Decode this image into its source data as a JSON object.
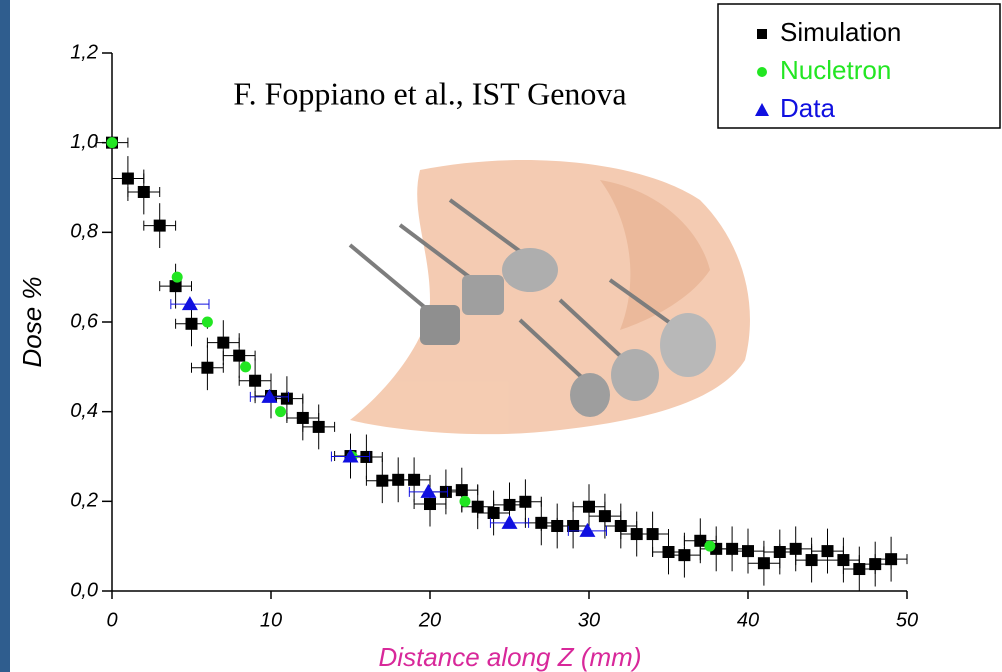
{
  "chart_data": {
    "type": "scatter",
    "annotation": "F. Foppiano et al., IST Genova",
    "xlabel": "Distance along Z (mm)",
    "ylabel": "Dose %",
    "xlim": [
      0,
      50
    ],
    "ylim": [
      0,
      1.2
    ],
    "xticks": [
      0,
      10,
      20,
      30,
      40,
      50
    ],
    "yticks": [
      {
        "value": 0,
        "label": "0,0"
      },
      {
        "value": 0.2,
        "label": "0,2"
      },
      {
        "value": 0.4,
        "label": "0,4"
      },
      {
        "value": 0.6,
        "label": "0,6"
      },
      {
        "value": 0.8,
        "label": "0,8"
      },
      {
        "value": 1.0,
        "label": "1,0"
      },
      {
        "value": 1.2,
        "label": "1,2"
      }
    ],
    "legend": "top-right",
    "series": [
      {
        "name": "Simulation",
        "color": "#000000",
        "marker": "square",
        "xerr": 1,
        "yerr": 0.05,
        "x": [
          0,
          1,
          2,
          3,
          4,
          5,
          6,
          7,
          8,
          9,
          10,
          11,
          12,
          13,
          15,
          16,
          17,
          18,
          19,
          20,
          21,
          22,
          23,
          24,
          25,
          26,
          27,
          28,
          29,
          30,
          31,
          32,
          33,
          34,
          35,
          36,
          37,
          38,
          39,
          40,
          41,
          42,
          43,
          44,
          45,
          46,
          47,
          48,
          49
        ],
        "values": [
          1.0,
          0.92,
          0.89,
          0.815,
          0.68,
          0.596,
          0.498,
          0.554,
          0.525,
          0.469,
          0.435,
          0.429,
          0.386,
          0.366,
          0.301,
          0.299,
          0.246,
          0.248,
          0.248,
          0.194,
          0.221,
          0.225,
          0.188,
          0.174,
          0.192,
          0.199,
          0.152,
          0.145,
          0.145,
          0.188,
          0.167,
          0.145,
          0.127,
          0.127,
          0.087,
          0.08,
          0.112,
          0.094,
          0.094,
          0.089,
          0.062,
          0.087,
          0.094,
          0.069,
          0.089,
          0.069,
          0.049,
          0.06,
          0.071
        ]
      },
      {
        "name": "Nucletron",
        "color": "#22e622",
        "marker": "circle",
        "x": [
          0,
          4.1,
          6.0,
          8.4,
          10.6,
          15.1,
          22.2,
          37.6
        ],
        "values": [
          1.0,
          0.7,
          0.6,
          0.5,
          0.4,
          0.3,
          0.2,
          0.1
        ]
      },
      {
        "name": "Data",
        "color": "#1010e0",
        "marker": "triangle",
        "xerr": 1.2,
        "yerr": 0.01,
        "x": [
          4.9,
          9.9,
          15,
          19.9,
          25,
          29.9
        ],
        "values": [
          0.64,
          0.433,
          0.3,
          0.221,
          0.152,
          0.134
        ]
      }
    ]
  }
}
